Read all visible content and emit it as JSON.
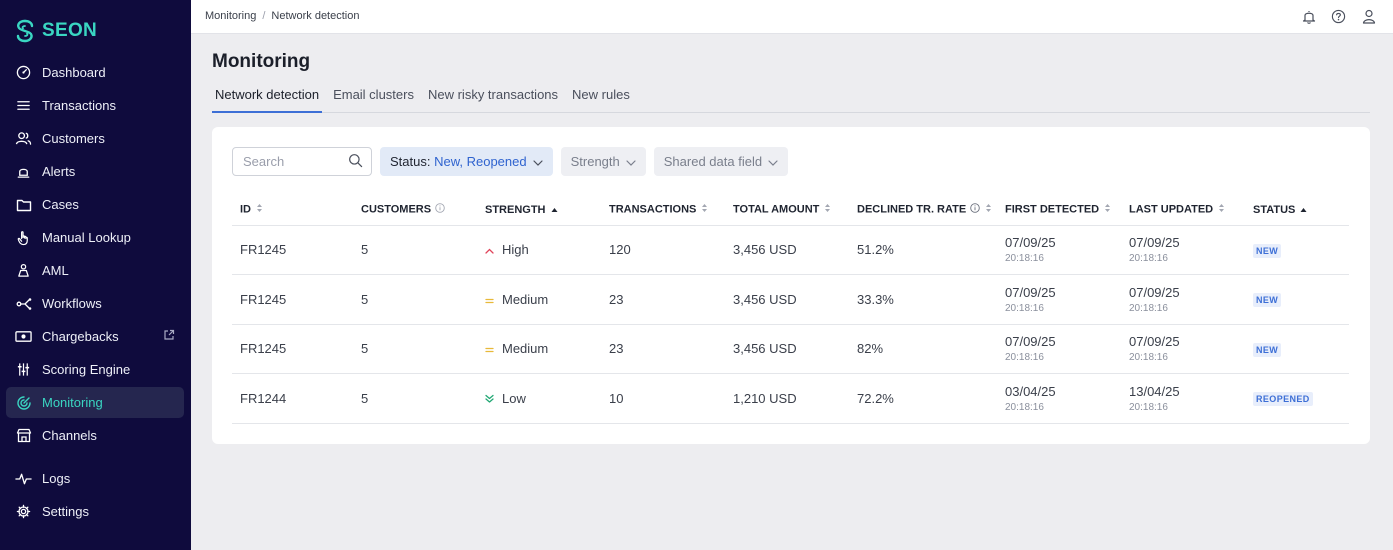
{
  "app": {
    "logo_text": "SEON"
  },
  "sidebar": {
    "items": [
      {
        "label": "Dashboard",
        "icon": "gauge-icon"
      },
      {
        "label": "Transactions",
        "icon": "list-icon"
      },
      {
        "label": "Customers",
        "icon": "users-icon"
      },
      {
        "label": "Alerts",
        "icon": "alarm-icon"
      },
      {
        "label": "Cases",
        "icon": "folder-icon"
      },
      {
        "label": "Manual Lookup",
        "icon": "hand-pointer-icon"
      },
      {
        "label": "AML",
        "icon": "bank-icon"
      },
      {
        "label": "Workflows",
        "icon": "workflow-icon"
      },
      {
        "label": "Chargebacks",
        "icon": "money-icon"
      },
      {
        "label": "Scoring Engine",
        "icon": "sliders-icon"
      },
      {
        "label": "Monitoring",
        "icon": "radar-icon",
        "active": true
      },
      {
        "label": "Channels",
        "icon": "store-icon"
      }
    ],
    "bottom_items": [
      {
        "label": "Logs",
        "icon": "pulse-icon"
      },
      {
        "label": "Settings",
        "icon": "gear-icon"
      }
    ]
  },
  "topbar": {
    "breadcrumb": [
      "Monitoring",
      "Network detection"
    ],
    "breadcrumb_sep": "/"
  },
  "page": {
    "title": "Monitoring",
    "tabs": [
      "Network detection",
      "Email clusters",
      "New risky transactions",
      "New rules"
    ],
    "active_tab": 0
  },
  "filters": {
    "search_placeholder": "Search",
    "status_label": "Status:",
    "status_value": "New, Reopened",
    "strength_label": "Strength",
    "shared_label": "Shared data field"
  },
  "table": {
    "headers": {
      "id": "ID",
      "customers": "CUSTOMERS",
      "strength": "STRENGTH",
      "transactions": "TRANSACTIONS",
      "total_amount": "TOTAL AMOUNT",
      "declined_rate": "DECLINED TR. RATE",
      "first_detected": "FIRST DETECTED",
      "last_updated": "LAST UPDATED",
      "status": "STATUS"
    },
    "rows": [
      {
        "id": "FR1245",
        "customers": "5",
        "strength": "High",
        "strength_level": "high",
        "transactions": "120",
        "total_amount": "3,456 USD",
        "declined_rate": "51.2%",
        "first_date": "07/09/25",
        "first_time": "20:18:16",
        "last_date": "07/09/25",
        "last_time": "20:18:16",
        "status": "NEW"
      },
      {
        "id": "FR1245",
        "customers": "5",
        "strength": "Medium",
        "strength_level": "medium",
        "transactions": "23",
        "total_amount": "3,456 USD",
        "declined_rate": "33.3%",
        "first_date": "07/09/25",
        "first_time": "20:18:16",
        "last_date": "07/09/25",
        "last_time": "20:18:16",
        "status": "NEW"
      },
      {
        "id": "FR1245",
        "customers": "5",
        "strength": "Medium",
        "strength_level": "medium",
        "transactions": "23",
        "total_amount": "3,456 USD",
        "declined_rate": "82%",
        "first_date": "07/09/25",
        "first_time": "20:18:16",
        "last_date": "07/09/25",
        "last_time": "20:18:16",
        "status": "NEW"
      },
      {
        "id": "FR1244",
        "customers": "5",
        "strength": "Low",
        "strength_level": "low",
        "transactions": "10",
        "total_amount": "1,210 USD",
        "declined_rate": "72.2%",
        "first_date": "03/04/25",
        "first_time": "20:18:16",
        "last_date": "13/04/25",
        "last_time": "20:18:16",
        "status": "REOPENED"
      }
    ]
  },
  "colors": {
    "sidebar_bg": "#0f0b3d",
    "accent_teal": "#3ad6c2",
    "link_blue": "#2f63cf",
    "high": "#e0445a",
    "medium": "#e8b93a",
    "low": "#22a874"
  }
}
